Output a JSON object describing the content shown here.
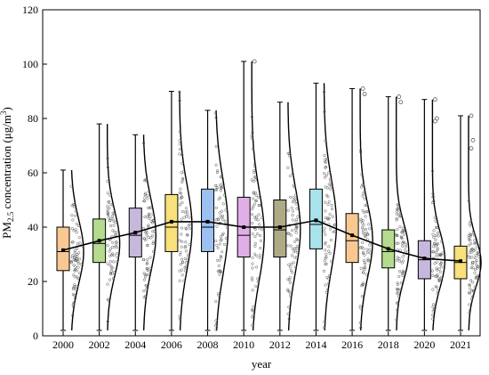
{
  "chart_data": {
    "type": "box",
    "categories": [
      "2000",
      "2002",
      "2004",
      "2006",
      "2008",
      "2010",
      "2012",
      "2014",
      "2016",
      "2018",
      "2020",
      "2021"
    ],
    "xlabel": "year",
    "ylabel": {
      "base": "PM",
      "sub": "2.5",
      "rest": " concentration (μg/m",
      "sup": "3",
      "end": ")"
    },
    "ylim": [
      0,
      120
    ],
    "yticks": [
      0,
      20,
      40,
      60,
      80,
      100,
      120
    ],
    "grid": false,
    "colors": [
      "#F9C892",
      "#B5DB8E",
      "#C6B8DC",
      "#F8E07A",
      "#9CC0F0",
      "#E0AEE6",
      "#ADAA86",
      "#A8E2EA",
      "#F9C892",
      "#B5DB8E",
      "#C6B8DC",
      "#F8E07A"
    ],
    "boxes": [
      {
        "min": 2,
        "q1": 24,
        "median": 31,
        "q3": 40,
        "max": 61,
        "mean": 31.5,
        "outliers": []
      },
      {
        "min": 2,
        "q1": 27,
        "median": 34,
        "q3": 43,
        "max": 78,
        "mean": 35,
        "outliers": []
      },
      {
        "min": 2,
        "q1": 29,
        "median": 37,
        "q3": 47,
        "max": 74,
        "mean": 38,
        "outliers": []
      },
      {
        "min": 2,
        "q1": 31,
        "median": 40,
        "q3": 52,
        "max": 90,
        "mean": 42,
        "outliers": []
      },
      {
        "min": 2,
        "q1": 31,
        "median": 40,
        "q3": 54,
        "max": 83,
        "mean": 42,
        "outliers": []
      },
      {
        "min": 2,
        "q1": 29,
        "median": 37,
        "q3": 51,
        "max": 101,
        "mean": 40,
        "outliers": [
          101
        ]
      },
      {
        "min": 2,
        "q1": 29,
        "median": 39,
        "q3": 50,
        "max": 86,
        "mean": 40,
        "outliers": []
      },
      {
        "min": 2,
        "q1": 32,
        "median": 41,
        "q3": 54,
        "max": 93,
        "mean": 42.5,
        "outliers": []
      },
      {
        "min": 2,
        "q1": 27,
        "median": 35,
        "q3": 45,
        "max": 91,
        "mean": 37,
        "outliers": [
          91,
          89
        ]
      },
      {
        "min": 2,
        "q1": 25,
        "median": 31,
        "q3": 39,
        "max": 88,
        "mean": 32,
        "outliers": [
          88,
          86
        ]
      },
      {
        "min": 2,
        "q1": 21,
        "median": 28,
        "q3": 35,
        "max": 87,
        "mean": 28.5,
        "outliers": [
          87,
          80,
          79
        ]
      },
      {
        "min": 2,
        "q1": 21,
        "median": 27,
        "q3": 33,
        "max": 81,
        "mean": 27.5,
        "outliers": [
          81,
          72,
          69
        ]
      }
    ]
  }
}
